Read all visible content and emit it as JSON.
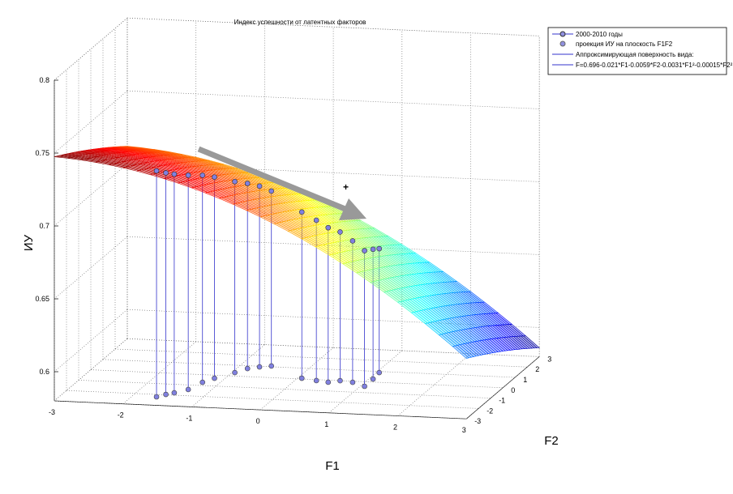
{
  "chart_data": {
    "type": "surface3d",
    "title": "Индекс успешности от латентных факторов",
    "xlabel": "F1",
    "ylabel": "F2",
    "zlabel": "ИУ",
    "xlim": [
      -3,
      3
    ],
    "ylim": [
      -3,
      3
    ],
    "zlim": [
      0.58,
      0.8
    ],
    "x_ticks": [
      "-3",
      "-2",
      "-1",
      "0",
      "1",
      "2",
      "3"
    ],
    "y_ticks": [
      "-3",
      "-2",
      "-1",
      "0",
      "1",
      "2",
      "3"
    ],
    "z_ticks": [
      "0.6",
      "0.65",
      "0.7",
      "0.75",
      "0.8"
    ],
    "grid": true,
    "surface_formula": {
      "intercept": 0.696,
      "F1": -0.021,
      "F2": -0.0059,
      "F1sq": -0.0031,
      "F2sq": -0.00015
    },
    "colors": {
      "points": "#8080e0",
      "stems": "#3333cc",
      "arrow": "#999999"
    },
    "legend": {
      "placement": "top-right",
      "entries": [
        "2000-2010 годы",
        "проекция ИУ на плоскость F1F2",
        "Аппроксимирующая поверхность вида:",
        "F=0.696-0.021*F1-0.0059*F2-0.0031*F1²-0.00015*F2²"
      ]
    },
    "series": [
      {
        "name": "2000-2010 годы",
        "points": [
          [
            -1.65,
            -2.22,
            0.735
          ],
          [
            -1.56,
            -1.96,
            0.732
          ],
          [
            -1.47,
            -1.78,
            0.73
          ],
          [
            -1.33,
            -1.42,
            0.727
          ],
          [
            -1.25,
            -0.7,
            0.722
          ],
          [
            -1.15,
            -0.28,
            0.718
          ],
          [
            -0.96,
            0.32,
            0.711
          ],
          [
            -0.85,
            0.74,
            0.707
          ],
          [
            -0.71,
            0.94,
            0.704
          ],
          [
            -0.56,
            1.07,
            0.7
          ],
          [
            0.06,
            0.07,
            0.694
          ],
          [
            0.3,
            -0.09,
            0.69
          ],
          [
            0.49,
            -0.19,
            0.686
          ],
          [
            0.63,
            0.0,
            0.682
          ],
          [
            0.83,
            -0.1,
            0.677
          ],
          [
            1.06,
            -0.42,
            0.673
          ],
          [
            1.06,
            0.28,
            0.669
          ],
          [
            1.04,
            0.9,
            0.665
          ]
        ]
      }
    ]
  }
}
